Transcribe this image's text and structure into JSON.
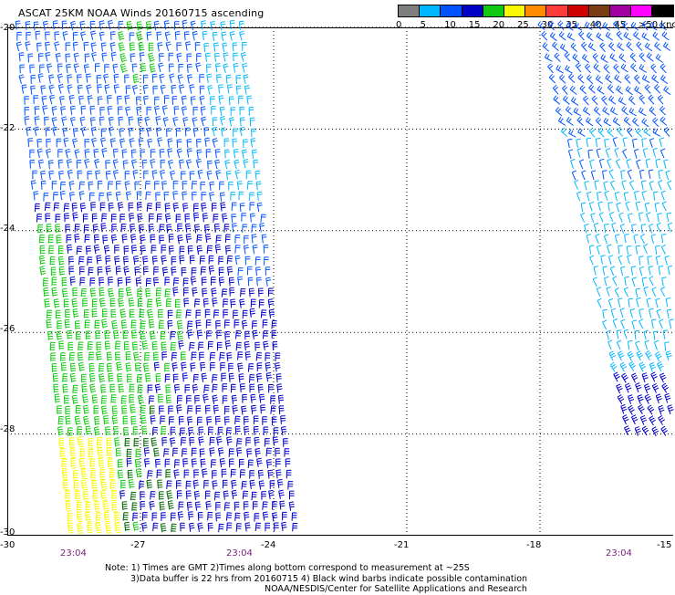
{
  "title": "ASCAT 25KM NOAA Winds 20160715 ascending",
  "colorbar": {
    "colors": [
      "#7f7f7f",
      "#00b7ff",
      "#0052ff",
      "#0000c8",
      "#10c810",
      "#f8f800",
      "#ff8c00",
      "#ff3c3c",
      "#d00000",
      "#7a3c14",
      "#a000a0",
      "#ff00ff",
      "#000000"
    ],
    "labels": [
      "0",
      "5",
      "10",
      "15",
      "20",
      "25",
      "30",
      "35",
      "40",
      "45",
      ">50 knots"
    ]
  },
  "axes": {
    "y_labels": [
      "-20",
      "-22",
      "-24",
      "-26",
      "-28",
      "-30"
    ],
    "x_labels": [
      "-30",
      "-27",
      "-24",
      "-21",
      "-18",
      "-15"
    ],
    "times": [
      "23:04",
      "23:04",
      "23:04"
    ]
  },
  "notes": {
    "line1": "Note: 1) Times are GMT 2)Times along bottom correspond to measurement at ~25S",
    "line2": "3)Data buffer is 22 hrs from 20160715 4) Black wind barbs indicate possible contamination",
    "line3": "NOAA/NESDIS/Center for Satellite Applications and Research"
  },
  "map_data": {
    "lon_range": [
      -30,
      -15
    ],
    "lat_range": [
      -30,
      -20
    ],
    "swaths": [
      {
        "name": "west-swath",
        "lat_top": -20,
        "lat_bottom": -30,
        "west_lon_top": -29.8,
        "west_lon_bottom": -28.6,
        "east_lon_top": -24.7,
        "east_lon_bottom": -23.4
      },
      {
        "name": "east-swath",
        "lat_top": -20,
        "lat_bottom": -28.1,
        "west_lon_top": -17.9,
        "west_lon_bottom": -16.0,
        "east_lon_top": -15.0,
        "east_lon_bottom": -15.0
      }
    ],
    "wind_speed_regions": [
      {
        "swath": "west",
        "region": "north",
        "speed_knots": "10-15",
        "color": "#0052ff"
      },
      {
        "swath": "west",
        "region": "middle",
        "speed_knots": "15-20",
        "color": "#0000c8"
      },
      {
        "swath": "west",
        "region": "south-west",
        "speed_knots": "20-25",
        "color": "#10c810"
      },
      {
        "swath": "west",
        "region": "far south-west",
        "speed_knots": "25-30",
        "color": "#f8f800"
      },
      {
        "swath": "east",
        "region": "north",
        "speed_knots": "10-15",
        "color": "#0052ff"
      },
      {
        "swath": "east",
        "region": "south",
        "speed_knots": "5-10",
        "color": "#00b7ff"
      }
    ]
  }
}
